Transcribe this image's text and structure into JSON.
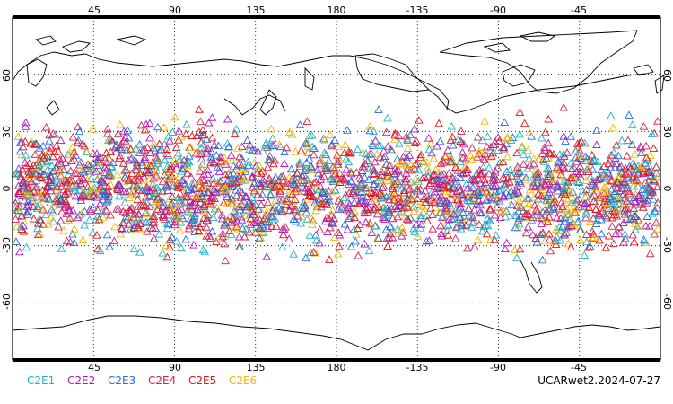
{
  "map": {
    "lon_ticks_top": [
      "45",
      "90",
      "135",
      "180",
      "-135",
      "-90",
      "-45"
    ],
    "lon_ticks_bottom": [
      "45",
      "90",
      "135",
      "180",
      "-135",
      "-90",
      "-45"
    ],
    "lat_ticks_left": [
      "60",
      "30",
      "0",
      "-30",
      "-60"
    ],
    "lat_ticks_right": [
      "60",
      "30",
      "0",
      "-30",
      "-60"
    ],
    "colors": {
      "frame": "#000000",
      "grid": "#000000",
      "coast": "#000000"
    },
    "projection": "cylindrical equidistant",
    "lon_range": [
      0,
      360
    ],
    "lat_range": [
      -90,
      90
    ],
    "grid": true
  },
  "legend": {
    "items": [
      {
        "label": "C2E1",
        "color": "#1fb3c9"
      },
      {
        "label": "C2E2",
        "color": "#b017b8"
      },
      {
        "label": "C2E3",
        "color": "#1f6fe0"
      },
      {
        "label": "C2E4",
        "color": "#d6204e"
      },
      {
        "label": "C2E5",
        "color": "#e01010"
      },
      {
        "label": "C2E6",
        "color": "#f2b400"
      }
    ]
  },
  "footer": {
    "label": "UCARwet2.2024-07-27"
  },
  "observations": {
    "marker": "open-triangle",
    "lat_band": [
      -45,
      45
    ]
  }
}
